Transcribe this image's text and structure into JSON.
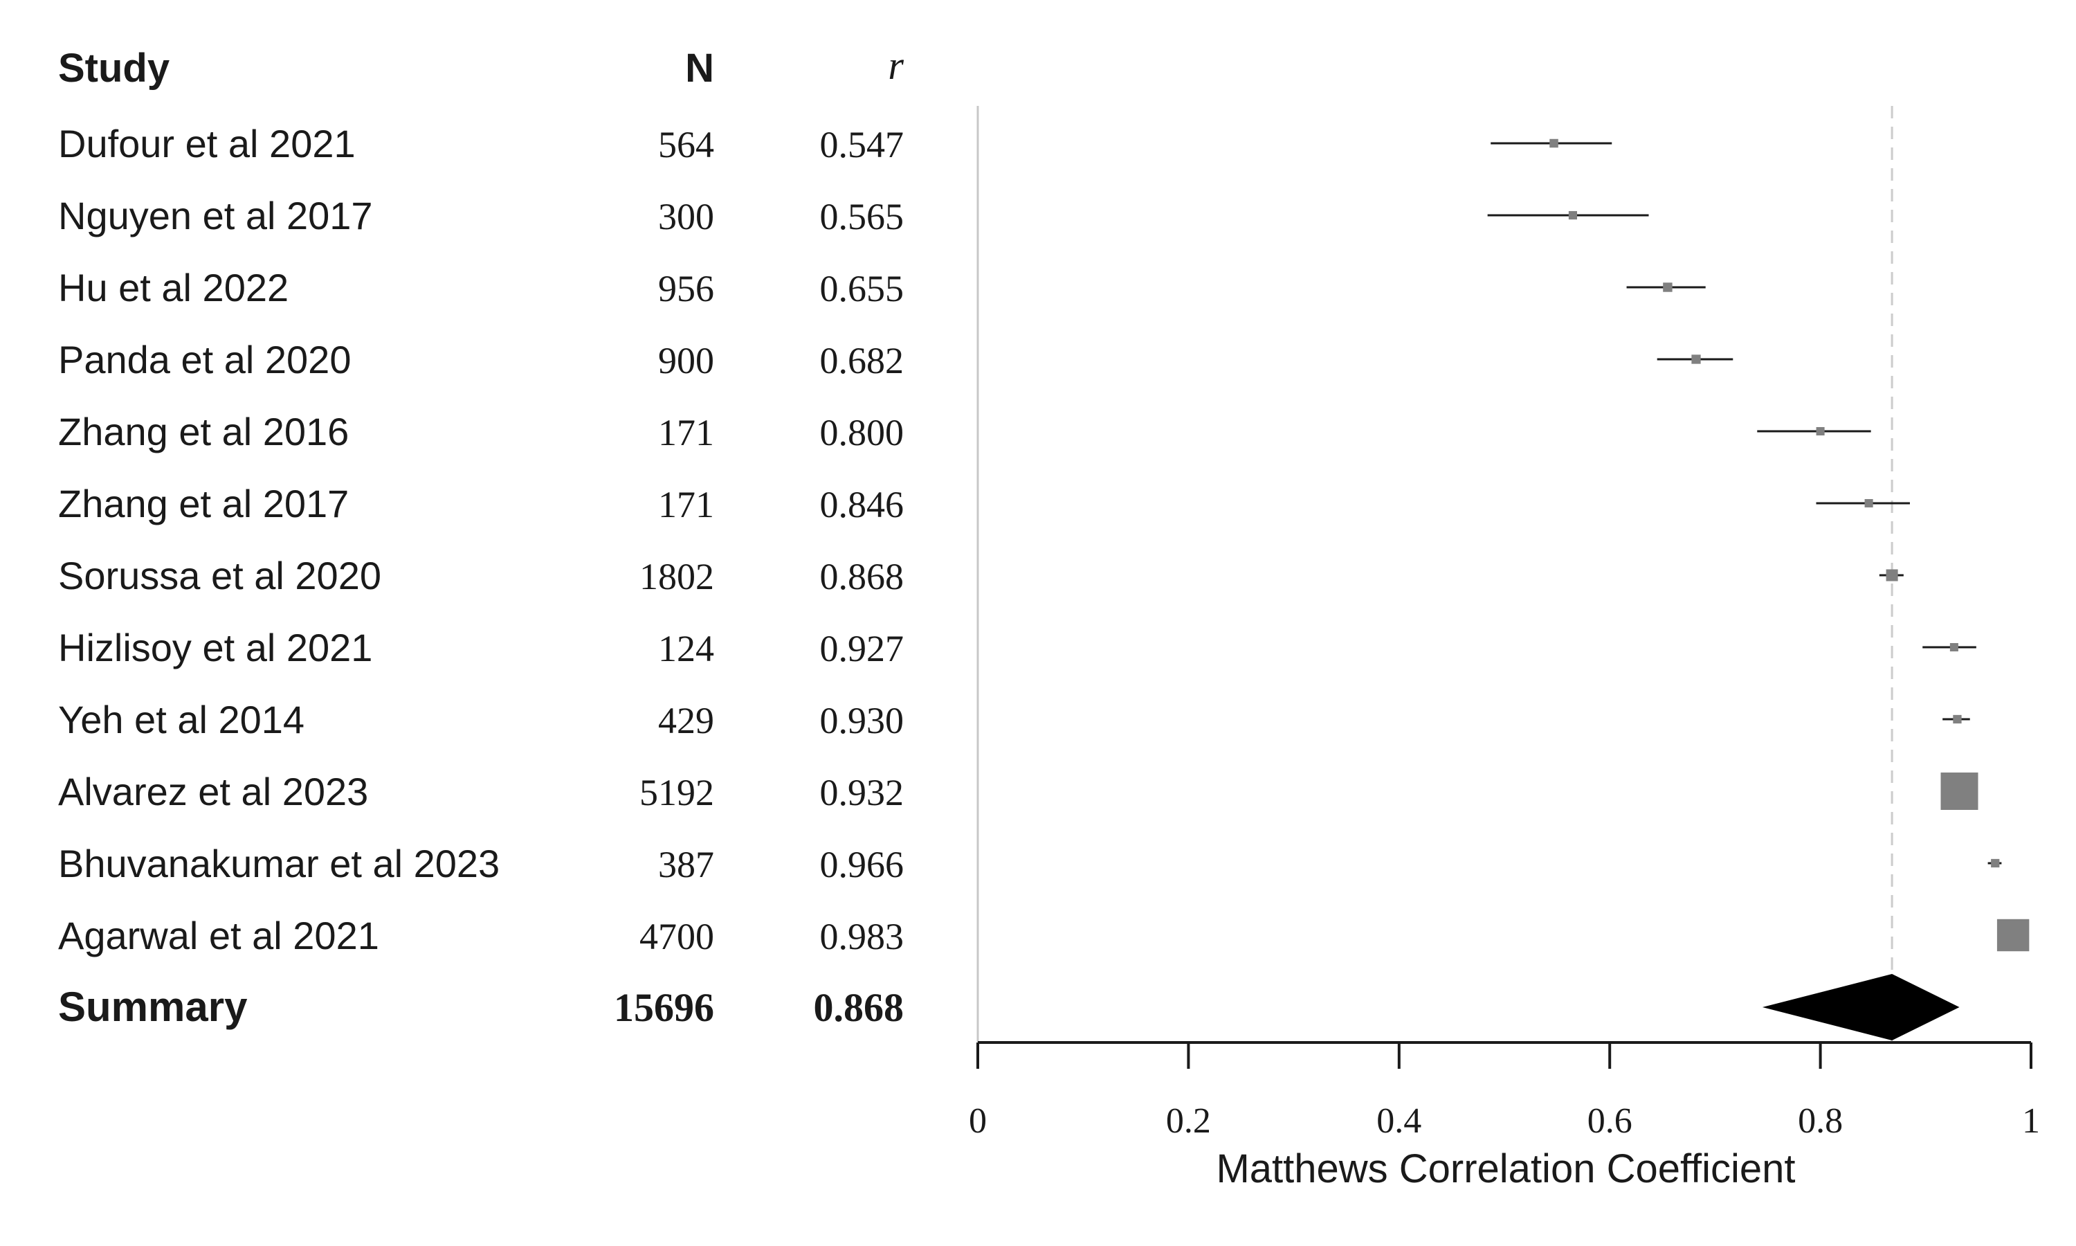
{
  "chart_data": {
    "type": "forest",
    "columns": {
      "study": "Study",
      "n": "N",
      "r": "r"
    },
    "xlabel": "Matthews Correlation Coefficient",
    "xlim": [
      0,
      1
    ],
    "xticks": [
      0,
      0.2,
      0.4,
      0.6,
      0.8,
      1
    ],
    "xtick_labels": [
      "0",
      "0.2",
      "0.4",
      "0.6",
      "0.8",
      "1"
    ],
    "reference_line": 0.868,
    "studies": [
      {
        "label": "Dufour et al 2021",
        "n": "564",
        "r_text": "0.547",
        "r": 0.547,
        "ci": [
          0.487,
          0.602
        ]
      },
      {
        "label": "Nguyen et al 2017",
        "n": "300",
        "r_text": "0.565",
        "r": 0.565,
        "ci": [
          0.484,
          0.637
        ]
      },
      {
        "label": "Hu et al 2022",
        "n": "956",
        "r_text": "0.655",
        "r": 0.655,
        "ci": [
          0.616,
          0.691
        ]
      },
      {
        "label": "Panda et al 2020",
        "n": "900",
        "r_text": "0.682",
        "r": 0.682,
        "ci": [
          0.645,
          0.717
        ]
      },
      {
        "label": "Zhang et al 2016",
        "n": "171",
        "r_text": "0.800",
        "r": 0.8,
        "ci": [
          0.74,
          0.848
        ]
      },
      {
        "label": "Zhang et al 2017",
        "n": "171",
        "r_text": "0.846",
        "r": 0.846,
        "ci": [
          0.796,
          0.885
        ]
      },
      {
        "label": "Sorussa et al 2020",
        "n": "1802",
        "r_text": "0.868",
        "r": 0.868,
        "ci": [
          0.856,
          0.879
        ]
      },
      {
        "label": "Hizlisoy et al 2021",
        "n": "124",
        "r_text": "0.927",
        "r": 0.927,
        "ci": [
          0.897,
          0.948
        ]
      },
      {
        "label": "Yeh et al 2014",
        "n": "429",
        "r_text": "0.930",
        "r": 0.93,
        "ci": [
          0.916,
          0.942
        ]
      },
      {
        "label": "Alvarez et al 2023",
        "n": "5192",
        "r_text": "0.932",
        "r": 0.932,
        "ci": [
          0.928,
          0.936
        ]
      },
      {
        "label": "Bhuvanakumar et al 2023",
        "n": "387",
        "r_text": "0.966",
        "r": 0.966,
        "ci": [
          0.959,
          0.972
        ]
      },
      {
        "label": "Agarwal et al 2021",
        "n": "4700",
        "r_text": "0.983",
        "r": 0.983,
        "ci": [
          0.982,
          0.984
        ]
      }
    ],
    "summary": {
      "label": "Summary",
      "n": "15696",
      "r_text": "0.868",
      "r": 0.868,
      "ci": [
        0.745,
        0.932
      ]
    }
  },
  "colors": {
    "marker": "#808080",
    "line": "#1a1a1a",
    "diamond": "#000000",
    "reference": "#cccccc",
    "axis": "#1a1a1a"
  }
}
